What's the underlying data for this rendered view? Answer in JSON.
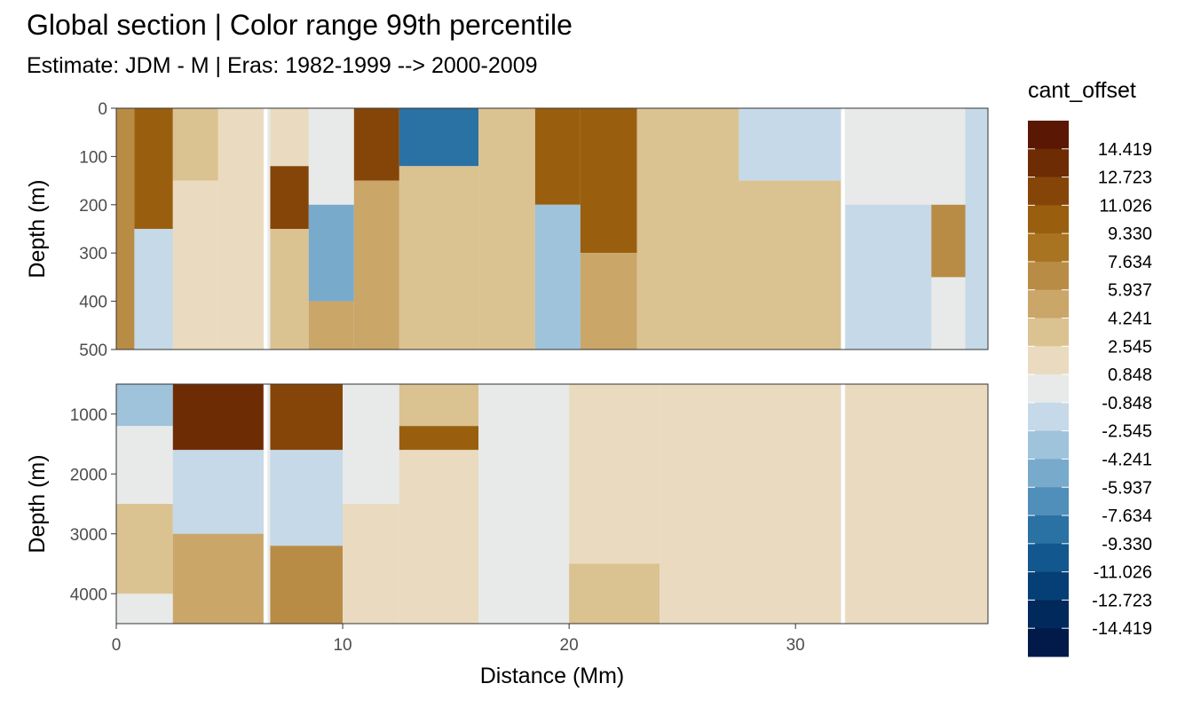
{
  "chart_data": {
    "type": "heatmap",
    "title": "Global section | Color range 99th percentile",
    "subtitle": "Estimate: JDM - M | Eras: 1982-1999 --> 2000-2009",
    "xlabel": "Distance (Mm)",
    "ylabel": "Depth (m)",
    "xlim": [
      0,
      38.5
    ],
    "x_ticks": [
      0,
      10,
      20,
      30
    ],
    "panels": [
      {
        "ylim": [
          0,
          500
        ],
        "y_ticks": [
          0,
          100,
          200,
          300,
          400,
          500
        ],
        "reversed": true,
        "cells": [
          {
            "x": [
              0,
              0.8
            ],
            "y": [
              0,
              500
            ],
            "level": 5
          },
          {
            "x": [
              0.8,
              2.5
            ],
            "y": [
              0,
              250
            ],
            "level": 3
          },
          {
            "x": [
              0.8,
              2.5
            ],
            "y": [
              250,
              500
            ],
            "level": 10
          },
          {
            "x": [
              2.5,
              4.5
            ],
            "y": [
              0,
              150
            ],
            "level": 7
          },
          {
            "x": [
              2.5,
              4.5
            ],
            "y": [
              150,
              500
            ],
            "level": 8
          },
          {
            "x": [
              4.5,
              6.5
            ],
            "y": [
              0,
              500
            ],
            "level": 8
          },
          {
            "x": [
              6.8,
              8.5
            ],
            "y": [
              0,
              120
            ],
            "level": 8
          },
          {
            "x": [
              6.8,
              8.5
            ],
            "y": [
              120,
              250
            ],
            "level": 2
          },
          {
            "x": [
              6.8,
              8.5
            ],
            "y": [
              250,
              500
            ],
            "level": 7
          },
          {
            "x": [
              8.5,
              10.5
            ],
            "y": [
              0,
              200
            ],
            "level": 9
          },
          {
            "x": [
              8.5,
              10.5
            ],
            "y": [
              200,
              400
            ],
            "level": 12
          },
          {
            "x": [
              8.5,
              10.5
            ],
            "y": [
              400,
              500
            ],
            "level": 6
          },
          {
            "x": [
              10.5,
              12.5
            ],
            "y": [
              0,
              150
            ],
            "level": 2
          },
          {
            "x": [
              10.5,
              12.5
            ],
            "y": [
              150,
              500
            ],
            "level": 6
          },
          {
            "x": [
              12.5,
              16
            ],
            "y": [
              0,
              120
            ],
            "level": 14
          },
          {
            "x": [
              12.5,
              16
            ],
            "y": [
              120,
              500
            ],
            "level": 7
          },
          {
            "x": [
              16,
              18.5
            ],
            "y": [
              0,
              500
            ],
            "level": 7
          },
          {
            "x": [
              18.5,
              20.5
            ],
            "y": [
              0,
              200
            ],
            "level": 3
          },
          {
            "x": [
              18.5,
              20.5
            ],
            "y": [
              200,
              500
            ],
            "level": 11
          },
          {
            "x": [
              20.5,
              23
            ],
            "y": [
              0,
              300
            ],
            "level": 3
          },
          {
            "x": [
              20.5,
              23
            ],
            "y": [
              300,
              500
            ],
            "level": 6
          },
          {
            "x": [
              23,
              27.5
            ],
            "y": [
              0,
              500
            ],
            "level": 7
          },
          {
            "x": [
              27.5,
              32
            ],
            "y": [
              0,
              150
            ],
            "level": 10
          },
          {
            "x": [
              27.5,
              32
            ],
            "y": [
              150,
              500
            ],
            "level": 7
          },
          {
            "x": [
              32.2,
              36
            ],
            "y": [
              0,
              200
            ],
            "level": 9
          },
          {
            "x": [
              32.2,
              36
            ],
            "y": [
              200,
              500
            ],
            "level": 10
          },
          {
            "x": [
              36,
              37.5
            ],
            "y": [
              200,
              350
            ],
            "level": 5
          },
          {
            "x": [
              37.5,
              38.5
            ],
            "y": [
              0,
              500
            ],
            "level": 10
          }
        ]
      },
      {
        "ylim": [
          500,
          4500
        ],
        "y_ticks": [
          1000,
          2000,
          3000,
          4000
        ],
        "reversed": true,
        "cells": [
          {
            "x": [
              0,
              2.5
            ],
            "y": [
              500,
              1200
            ],
            "level": 11
          },
          {
            "x": [
              0,
              2.5
            ],
            "y": [
              1200,
              2500
            ],
            "level": 9
          },
          {
            "x": [
              0,
              2.5
            ],
            "y": [
              2500,
              4000
            ],
            "level": 7
          },
          {
            "x": [
              2.5,
              6.5
            ],
            "y": [
              500,
              1600
            ],
            "level": 1
          },
          {
            "x": [
              2.5,
              6.5
            ],
            "y": [
              1600,
              3000
            ],
            "level": 10
          },
          {
            "x": [
              2.5,
              6.5
            ],
            "y": [
              3000,
              4500
            ],
            "level": 6
          },
          {
            "x": [
              6.8,
              10
            ],
            "y": [
              500,
              1600
            ],
            "level": 2
          },
          {
            "x": [
              6.8,
              10
            ],
            "y": [
              1600,
              3200
            ],
            "level": 10
          },
          {
            "x": [
              6.8,
              10
            ],
            "y": [
              3200,
              4500
            ],
            "level": 5
          },
          {
            "x": [
              10,
              12.5
            ],
            "y": [
              500,
              2500
            ],
            "level": 9
          },
          {
            "x": [
              10,
              12.5
            ],
            "y": [
              2500,
              4500
            ],
            "level": 8
          },
          {
            "x": [
              12.5,
              16
            ],
            "y": [
              500,
              1200
            ],
            "level": 7
          },
          {
            "x": [
              12.5,
              16
            ],
            "y": [
              1200,
              1600
            ],
            "level": 3
          },
          {
            "x": [
              12.5,
              16
            ],
            "y": [
              1600,
              4500
            ],
            "level": 8
          },
          {
            "x": [
              16,
              20
            ],
            "y": [
              500,
              4500
            ],
            "level": 9
          },
          {
            "x": [
              20,
              24
            ],
            "y": [
              500,
              3500
            ],
            "level": 8
          },
          {
            "x": [
              20,
              24
            ],
            "y": [
              3500,
              4500
            ],
            "level": 7
          },
          {
            "x": [
              24,
              32
            ],
            "y": [
              500,
              4500
            ],
            "level": 8
          },
          {
            "x": [
              32.2,
              38.5
            ],
            "y": [
              500,
              4500
            ],
            "level": 8
          }
        ]
      }
    ],
    "legend": {
      "title": "cant_offset",
      "labels": [
        "14.419",
        "12.723",
        "11.026",
        "9.330",
        "7.634",
        "5.937",
        "4.241",
        "2.545",
        "0.848",
        "-0.848",
        "-2.545",
        "-4.241",
        "-5.937",
        "-7.634",
        "-9.330",
        "-11.026",
        "-12.723",
        "-14.419"
      ],
      "colors": [
        "#5a1703",
        "#6e2c05",
        "#854508",
        "#9a5f0e",
        "#a97421",
        "#b98c45",
        "#caa669",
        "#dbc291",
        "#eadbc0",
        "#e8eae9",
        "#c5d9e8",
        "#9fc3db",
        "#78aacb",
        "#4f8fba",
        "#2a71a4",
        "#12578e",
        "#063f76",
        "#01295c",
        "#011a4a"
      ]
    }
  }
}
